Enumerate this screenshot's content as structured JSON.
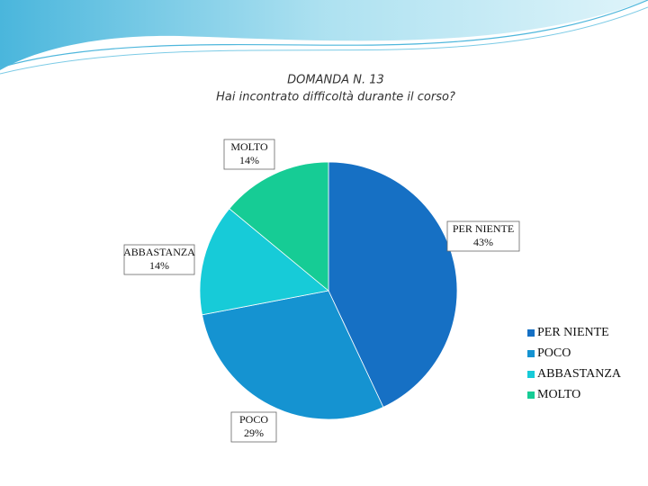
{
  "chart_data": {
    "type": "pie",
    "title": "DOMANDA N. 13",
    "subtitle": "Hai incontrato difficoltà durante il corso?",
    "categories": [
      "PER NIENTE",
      "POCO",
      "ABBASTANZA",
      "MOLTO"
    ],
    "values": [
      43,
      29,
      14,
      14
    ],
    "value_labels": [
      "43%",
      "29%",
      "14%",
      "14%"
    ],
    "colors": [
      "#1670c4",
      "#1593d1",
      "#17cbd8",
      "#16cc95"
    ],
    "legend": "right"
  }
}
